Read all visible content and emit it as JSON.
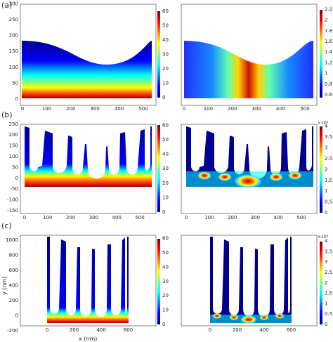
{
  "panels": [
    {
      "label": "(a)",
      "left_colorbar": {
        "ticks": [
          "0",
          "10",
          "20",
          "30",
          "40",
          "50",
          "60"
        ]
      },
      "right_colorbar": {
        "exponent": "",
        "ticks": [
          "0.6",
          "0.8",
          "1",
          "1.2",
          "1.4",
          "1.6",
          "1.8",
          "2",
          "2.2"
        ]
      },
      "left_x_ticks": [
        "0",
        "100",
        "200",
        "300",
        "400",
        "500"
      ],
      "right_x_ticks": [
        "0",
        "100",
        "200",
        "300",
        "400",
        "500"
      ],
      "y_ticks": [
        "0",
        "50",
        "100",
        "150",
        "200",
        "250",
        "300"
      ]
    },
    {
      "label": "(b)",
      "left_colorbar": {
        "ticks": [
          "0",
          "10",
          "20",
          "30",
          "40",
          "50",
          "60"
        ]
      },
      "right_colorbar": {
        "exponent": "×10⁸",
        "ticks": [
          "0",
          "0.5",
          "1",
          "1.5",
          "2",
          "2.5",
          "3",
          "3.5",
          "4"
        ]
      },
      "left_x_ticks": [
        "0",
        "100",
        "200",
        "300",
        "400",
        "500"
      ],
      "right_x_ticks": [
        "0",
        "100",
        "200",
        "300",
        "400",
        "500"
      ],
      "y_ticks": [
        "-150",
        "-100",
        "-50",
        "0",
        "50",
        "100",
        "150",
        "200",
        "250"
      ]
    },
    {
      "label": "(c)",
      "left_colorbar": {
        "ticks": [
          "0",
          "10",
          "20",
          "30",
          "40",
          "50",
          "60"
        ]
      },
      "right_colorbar": {
        "exponent": "×10⁸",
        "ticks": [
          "0",
          "0.5",
          "1",
          "1.5",
          "2",
          "2.5",
          "3",
          "3.5",
          "4"
        ]
      },
      "left_x_ticks": [
        "0",
        "200",
        "400",
        "600"
      ],
      "right_x_ticks": [
        "0",
        "200",
        "400",
        "600"
      ],
      "y_ticks": [
        "-200",
        "0",
        "200",
        "400",
        "600",
        "800",
        "1000"
      ],
      "xlabel": "x (nm)",
      "ylabel": "y (nm)"
    }
  ],
  "colors": {
    "jet_dark_blue": "#00008f",
    "jet_red": "#800000"
  }
}
